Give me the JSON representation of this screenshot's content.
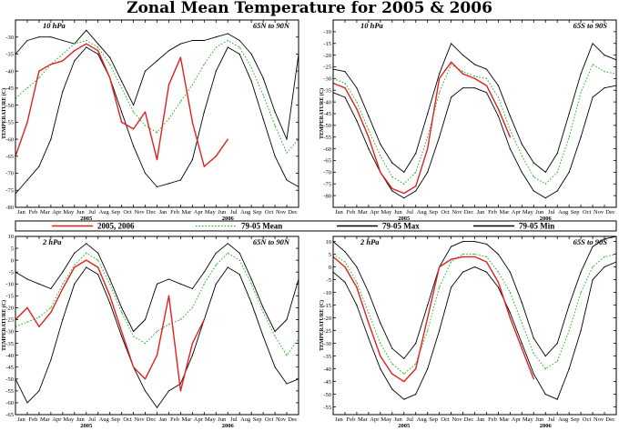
{
  "title": "Zonal Mean Temperature for 2005 & 2006",
  "months": [
    "Jan",
    "Feb",
    "Mar",
    "Apr",
    "May",
    "Jun",
    "Jul",
    "Aug",
    "Sep",
    "Oct",
    "Nov",
    "Dec"
  ],
  "years": [
    "2005",
    "2006"
  ],
  "ylabel": "TEMPERATURE (C)",
  "legend": [
    {
      "label": "2005, 2006",
      "color": "#e02020",
      "style": "solid"
    },
    {
      "label": "79-05 Mean",
      "color": "#20b020",
      "style": "dotted"
    },
    {
      "label": "79-05 Max",
      "color": "#000000",
      "style": "solid"
    },
    {
      "label": "79-05 Min",
      "color": "#000000",
      "style": "solid"
    }
  ],
  "colors": {
    "obs": "#e02020",
    "mean": "#20b020",
    "env": "#000000"
  },
  "chart_data": [
    {
      "type": "line",
      "pressure": "10 hPa",
      "region": "65N to 90N",
      "ylim": [
        -80,
        -25
      ],
      "yticks": [
        -80,
        -75,
        -70,
        -65,
        -60,
        -55,
        -50,
        -45,
        -40,
        -35,
        -30
      ],
      "x_months": [
        0,
        1,
        2,
        3,
        4,
        5,
        6,
        7,
        8,
        9,
        10,
        11,
        12,
        13,
        14,
        15,
        16,
        17,
        18,
        19,
        20,
        21,
        22,
        23,
        24
      ],
      "series": [
        {
          "name": "79-05 Max",
          "values": [
            -35,
            -31,
            -30,
            -30,
            -31,
            -32,
            -28,
            -32,
            -36,
            -43,
            -50,
            -40,
            -37,
            -34,
            -32,
            -31,
            -31,
            -30,
            -29,
            -31,
            -35,
            -42,
            -52,
            -60,
            -35
          ]
        },
        {
          "name": "79-05 Mean",
          "values": [
            -48,
            -45,
            -42,
            -38,
            -35,
            -32,
            -31,
            -33,
            -38,
            -45,
            -52,
            -56,
            -58,
            -54,
            -49,
            -44,
            -38,
            -33,
            -31,
            -33,
            -39,
            -47,
            -56,
            -64,
            -60
          ]
        },
        {
          "name": "79-05 Min",
          "values": [
            -76,
            -72,
            -68,
            -60,
            -46,
            -37,
            -33,
            -35,
            -42,
            -52,
            -62,
            -70,
            -74,
            -73,
            -72,
            -66,
            -52,
            -40,
            -33,
            -35,
            -43,
            -54,
            -65,
            -72,
            -74
          ]
        },
        {
          "name": "2005, 2006",
          "values": [
            -65,
            -55,
            -40,
            -38,
            -37,
            -34,
            -32,
            -34,
            -42,
            -55,
            -57,
            -52,
            -66,
            -44,
            -36,
            -55,
            -68,
            -65,
            -60,
            null,
            null,
            null,
            null,
            null,
            null
          ]
        }
      ]
    },
    {
      "type": "line",
      "pressure": "10 hPa",
      "region": "65S to 90S",
      "ylim": [
        -85,
        -5
      ],
      "yticks": [
        -80,
        -75,
        -70,
        -65,
        -60,
        -55,
        -50,
        -45,
        -40,
        -35,
        -30,
        -25,
        -20,
        -15,
        -10
      ],
      "x_months": [
        0,
        1,
        2,
        3,
        4,
        5,
        6,
        7,
        8,
        9,
        10,
        11,
        12,
        13,
        14,
        15,
        16,
        17,
        18,
        19,
        20,
        21,
        22,
        23,
        24
      ],
      "series": [
        {
          "name": "79-05 Max",
          "values": [
            -26,
            -27,
            -34,
            -46,
            -58,
            -66,
            -70,
            -62,
            -45,
            -28,
            -15,
            -20,
            -24,
            -26,
            -33,
            -46,
            -58,
            -66,
            -70,
            -62,
            -45,
            -28,
            -15,
            -20,
            -22
          ]
        },
        {
          "name": "79-05 Mean",
          "values": [
            -30,
            -32,
            -40,
            -52,
            -63,
            -72,
            -75,
            -70,
            -55,
            -36,
            -24,
            -27,
            -29,
            -30,
            -38,
            -52,
            -63,
            -72,
            -75,
            -70,
            -55,
            -36,
            -24,
            -27,
            -28
          ]
        },
        {
          "name": "79-05 Min",
          "values": [
            -36,
            -38,
            -48,
            -60,
            -70,
            -78,
            -81,
            -78,
            -70,
            -55,
            -38,
            -34,
            -34,
            -36,
            -46,
            -60,
            -70,
            -78,
            -81,
            -78,
            -70,
            -55,
            -38,
            -34,
            -33
          ]
        },
        {
          "name": "2005, 2006",
          "values": [
            -32,
            -34,
            -43,
            -55,
            -70,
            -77,
            -79,
            -76,
            -60,
            -30,
            -23,
            -28,
            -30,
            -33,
            -43,
            -55,
            null,
            null,
            null,
            null,
            null,
            null,
            null,
            null,
            null
          ]
        }
      ]
    },
    {
      "type": "line",
      "pressure": "2 hPa",
      "region": "65N to 90N",
      "ylim": [
        -65,
        10
      ],
      "yticks": [
        -65,
        -60,
        -55,
        -50,
        -45,
        -40,
        -35,
        -30,
        -25,
        -20,
        -15,
        -10,
        -5,
        0,
        5,
        10
      ],
      "x_months": [
        0,
        1,
        2,
        3,
        4,
        5,
        6,
        7,
        8,
        9,
        10,
        11,
        12,
        13,
        14,
        15,
        16,
        17,
        18,
        19,
        20,
        21,
        22,
        23,
        24
      ],
      "series": [
        {
          "name": "79-05 Max",
          "values": [
            -5,
            -8,
            -10,
            -12,
            -5,
            3,
            7,
            3,
            -8,
            -20,
            -30,
            -25,
            -10,
            -8,
            -10,
            -12,
            -5,
            3,
            7,
            3,
            -8,
            -20,
            -30,
            -25,
            -8
          ]
        },
        {
          "name": "79-05 Mean",
          "values": [
            -28,
            -26,
            -24,
            -20,
            -10,
            -2,
            3,
            0,
            -10,
            -22,
            -32,
            -35,
            -30,
            -27,
            -25,
            -20,
            -10,
            -2,
            3,
            0,
            -10,
            -22,
            -32,
            -40,
            -33
          ]
        },
        {
          "name": "79-05 Min",
          "values": [
            -50,
            -60,
            -55,
            -42,
            -25,
            -10,
            -3,
            -6,
            -18,
            -32,
            -45,
            -55,
            -62,
            -55,
            -52,
            -40,
            -25,
            -10,
            -3,
            -6,
            -18,
            -32,
            -45,
            -52,
            -50
          ]
        },
        {
          "name": "2005, 2006",
          "values": [
            -25,
            -20,
            -28,
            -22,
            -12,
            -3,
            0,
            -3,
            -15,
            -30,
            -45,
            -50,
            -40,
            -15,
            -55,
            -35,
            -25,
            null,
            null,
            null,
            null,
            null,
            null,
            null,
            null
          ]
        }
      ]
    },
    {
      "type": "line",
      "pressure": "2 hPa",
      "region": "65S to 90S",
      "ylim": [
        -58,
        12
      ],
      "yticks": [
        -55,
        -50,
        -45,
        -40,
        -35,
        -30,
        -25,
        -20,
        -15,
        -10,
        -5,
        0,
        5,
        10
      ],
      "x_months": [
        0,
        1,
        2,
        3,
        4,
        5,
        6,
        7,
        8,
        9,
        10,
        11,
        12,
        13,
        14,
        15,
        16,
        17,
        18,
        19,
        20,
        21,
        22,
        23,
        24
      ],
      "series": [
        {
          "name": "79-05 Max",
          "values": [
            10,
            6,
            0,
            -10,
            -22,
            -32,
            -36,
            -30,
            -15,
            0,
            8,
            10,
            10,
            9,
            5,
            -2,
            -14,
            -28,
            -35,
            -30,
            -15,
            -2,
            8,
            11,
            12
          ]
        },
        {
          "name": "79-05 Mean",
          "values": [
            5,
            2,
            -6,
            -18,
            -30,
            -38,
            -42,
            -38,
            -25,
            -8,
            2,
            5,
            5,
            4,
            -2,
            -10,
            -22,
            -34,
            -40,
            -37,
            -25,
            -10,
            0,
            4,
            5
          ]
        },
        {
          "name": "79-05 Min",
          "values": [
            -2,
            -6,
            -15,
            -28,
            -40,
            -48,
            -52,
            -50,
            -40,
            -25,
            -8,
            -2,
            0,
            -2,
            -8,
            -18,
            -30,
            -42,
            -50,
            -52,
            -40,
            -25,
            -5,
            0,
            2
          ]
        },
        {
          "name": "2005, 2006",
          "values": [
            4,
            0,
            -8,
            -22,
            -35,
            -42,
            -45,
            -40,
            -20,
            0,
            3,
            4,
            4,
            2,
            -6,
            -20,
            -32,
            -44,
            null,
            null,
            null,
            null,
            null,
            null,
            null
          ]
        }
      ]
    }
  ]
}
